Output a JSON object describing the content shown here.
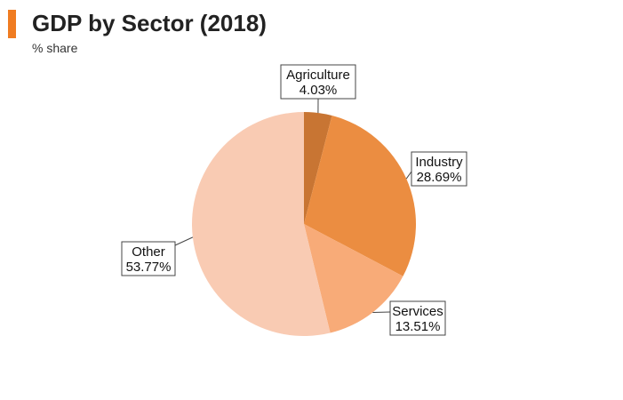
{
  "chart_data": {
    "type": "pie",
    "title": "GDP by Sector (2018)",
    "subtitle": "% share",
    "slices": [
      {
        "label": "Agriculture",
        "value": 4.03,
        "display": "4.03%",
        "color": "#c87533"
      },
      {
        "label": "Industry",
        "value": 28.69,
        "display": "28.69%",
        "color": "#eb8d41"
      },
      {
        "label": "Services",
        "value": 13.51,
        "display": "13.51%",
        "color": "#f8ab78"
      },
      {
        "label": "Other",
        "value": 53.77,
        "display": "53.77%",
        "color": "#f9cbb3"
      }
    ],
    "accent_color": "#f07c21"
  }
}
